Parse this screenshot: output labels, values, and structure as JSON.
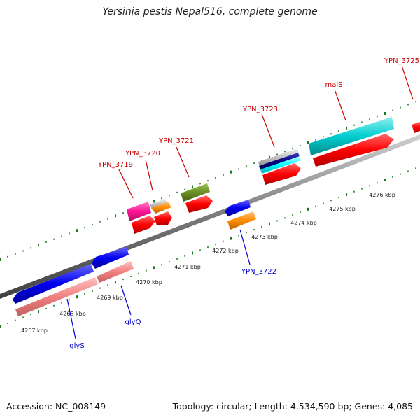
{
  "title": "Yersinia pestis Nepal516, complete genome",
  "footer": {
    "accession": "Accession: NC_008149",
    "stats": "Topology: circular; Length: 4,534,590 bp; Genes: 4,085"
  },
  "colors": {
    "backbone": "#808080",
    "tick": "#1a7a1a",
    "forward_label": "#cc0000",
    "reverse_label": "#0000cc",
    "scale_text": "#222222"
  },
  "scale_labels": [
    "4267 kbp",
    "4268 kbp",
    "4269 kbp",
    "4270 kbp",
    "4271 kbp",
    "4272 kbp",
    "4273 kbp",
    "4274 kbp",
    "4275 kbp",
    "4276 kbp"
  ],
  "forward_gene_labels": [
    "YPN_3719",
    "YPN_3720",
    "YPN_3721",
    "YPN_3723",
    "malS",
    "YPN_3725"
  ],
  "reverse_gene_labels": [
    "glyS",
    "glyQ",
    "YPN_3722"
  ],
  "feature_colors": [
    "#ff0000",
    "#0000ee",
    "#f08080",
    "#ff1493",
    "#c0c0c0",
    "#ff8c00",
    "#6b8e23",
    "#00ced1",
    "#000080",
    "#00ffff"
  ]
}
